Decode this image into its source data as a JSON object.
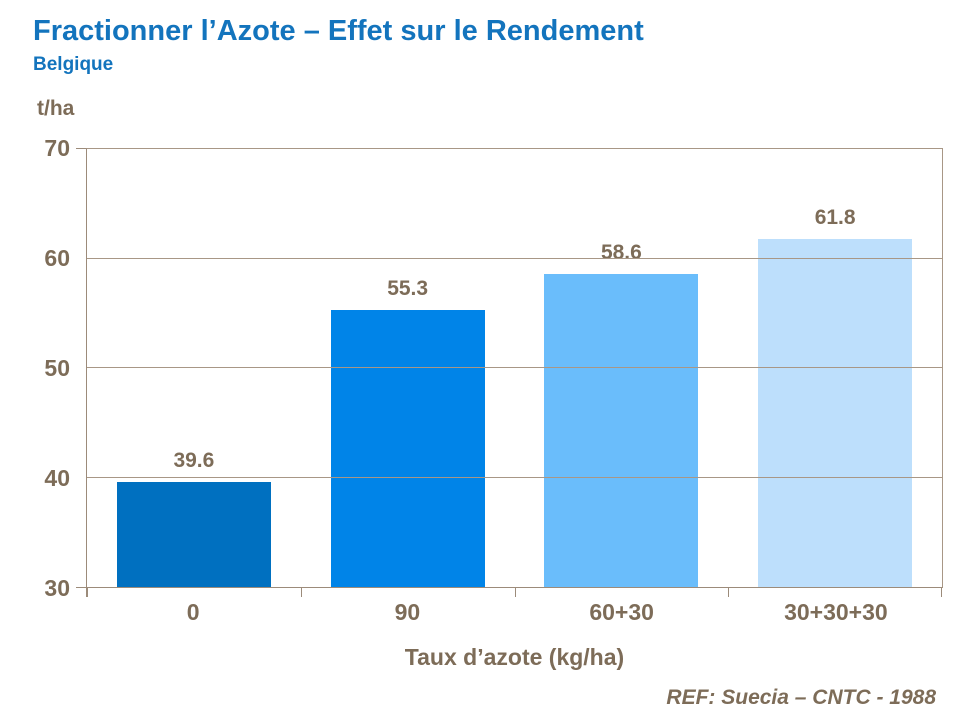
{
  "header": {
    "title": "Fractionner l’Azote – Effet sur le Rendement",
    "subtitle": "Belgique"
  },
  "chart_data": {
    "type": "bar",
    "title": "Fractionner l’Azote – Effet sur le Rendement",
    "subtitle": "Belgique",
    "categories": [
      "0",
      "90",
      "60+30",
      "30+30+30"
    ],
    "values": [
      39.6,
      55.3,
      58.6,
      61.8
    ],
    "value_labels": [
      "39.6",
      "55.3",
      "58.6",
      "61.8"
    ],
    "unit_label": "t/ha",
    "xlabel": "Taux d’azote (kg/ha)",
    "ylabel": "t/ha",
    "ylim": [
      30,
      70
    ],
    "yticks": [
      30,
      40,
      50,
      60,
      70
    ],
    "grid": true,
    "legend": "none",
    "bar_colors": [
      "#0070C0",
      "#0084E8",
      "#6ABDFB",
      "#BDDFFC"
    ]
  },
  "footer": {
    "ref": "REF: Suecia – CNTC - 1988"
  },
  "colors": {
    "title_blue": "#1374BD",
    "axis_text_brown": "#7D6C58",
    "gridline": "#A89786",
    "axis_line": "#9C8B7A",
    "background": "#FFFFFF"
  }
}
